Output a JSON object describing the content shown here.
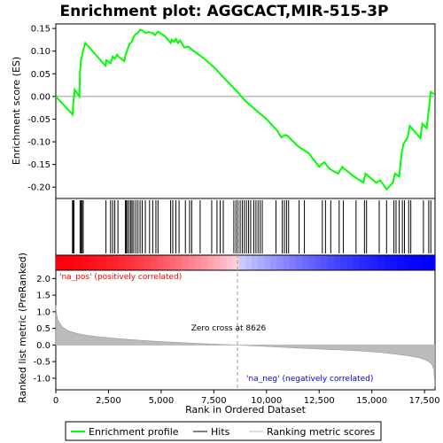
{
  "chart_data": {
    "type": "line",
    "title": "Enrichment plot: AGGCACT,MIR-515-3P",
    "xlabel": "Rank in Ordered Dataset",
    "ylabel_top": "Enrichment score (ES)",
    "ylabel_bottom": "Ranked list metric (PreRanked)",
    "xlim": [
      0,
      18000
    ],
    "x_ticks": [
      0,
      2500,
      5000,
      7500,
      10000,
      12500,
      15000,
      17500
    ],
    "x_tick_labels": [
      "0",
      "2,500",
      "5,000",
      "7,500",
      "10,000",
      "12,500",
      "15,000",
      "17,500"
    ],
    "es_ylim": [
      -0.225,
      0.16
    ],
    "es_ticks": [
      0.15,
      0.1,
      0.05,
      0.0,
      -0.05,
      -0.1,
      -0.15,
      -0.2
    ],
    "es_tick_labels": [
      "0.15",
      "0.10",
      "0.05",
      "0.00",
      "-0.05",
      "-0.10",
      "-0.15",
      "-0.20"
    ],
    "metric_ylim": [
      -1.35,
      2.25
    ],
    "metric_ticks": [
      2.0,
      1.5,
      1.0,
      0.5,
      0.0,
      -0.5,
      -1.0
    ],
    "metric_tick_labels": [
      "2.0",
      "1.5",
      "1.0",
      "0.5",
      "0.0",
      "-0.5",
      "-1.0"
    ],
    "zero_cross_rank": 8626,
    "zero_cross_label": "Zero cross at 8626",
    "pos_label": "'na_pos' (positively correlated)",
    "neg_label": "'na_neg' (negatively correlated)",
    "colors": {
      "es_line": "#00ff00",
      "pos_text": "#ff0000",
      "neg_text": "#0000ff",
      "metric_fill": "#bbbbbb",
      "zero_line": "#999999"
    },
    "legend": [
      {
        "label": "Enrichment profile",
        "kind": "line",
        "color": "#00ff00"
      },
      {
        "label": "Hits",
        "kind": "line",
        "color": "#000000"
      },
      {
        "label": "Ranking metric scores",
        "kind": "line",
        "color": "#bbbbbb"
      }
    ],
    "es_profile": {
      "x": [
        0,
        800,
        830,
        900,
        1120,
        1150,
        1200,
        1270,
        1300,
        1400,
        2350,
        2400,
        2600,
        2700,
        2800,
        2900,
        3000,
        3250,
        3300,
        3400,
        3500,
        3600,
        3700,
        3800,
        3900,
        4000,
        4100,
        4250,
        4400,
        4500,
        4600,
        4700,
        4850,
        5200,
        5450,
        5500,
        5600,
        5700,
        5800,
        5900,
        6100,
        6300,
        6400,
        7000,
        7500,
        8000,
        8626,
        9000,
        9500,
        10000,
        10500,
        10700,
        10900,
        11000,
        11500,
        12000,
        12500,
        12650,
        12750,
        13000,
        13400,
        13600,
        13700,
        14200,
        14600,
        14700,
        15200,
        15400,
        15700,
        16000,
        16100,
        16300,
        16400,
        16500,
        16700,
        16800,
        17300,
        17400,
        17600,
        17700,
        17800,
        17950
      ],
      "y": [
        0.0,
        -0.04,
        -0.015,
        0.015,
        0.0,
        0.055,
        0.08,
        0.095,
        0.102,
        0.118,
        0.068,
        0.08,
        0.073,
        0.088,
        0.083,
        0.092,
        0.087,
        0.078,
        0.09,
        0.103,
        0.116,
        0.12,
        0.132,
        0.138,
        0.14,
        0.147,
        0.146,
        0.14,
        0.142,
        0.141,
        0.14,
        0.135,
        0.143,
        0.132,
        0.118,
        0.125,
        0.121,
        0.127,
        0.118,
        0.124,
        0.108,
        0.11,
        0.105,
        0.085,
        0.065,
        0.04,
        0.01,
        -0.01,
        -0.03,
        -0.05,
        -0.075,
        -0.09,
        -0.085,
        -0.087,
        -0.11,
        -0.125,
        -0.155,
        -0.148,
        -0.145,
        -0.16,
        -0.17,
        -0.155,
        -0.16,
        -0.178,
        -0.19,
        -0.17,
        -0.19,
        -0.185,
        -0.205,
        -0.19,
        -0.17,
        -0.177,
        -0.13,
        -0.105,
        -0.09,
        -0.065,
        -0.092,
        -0.06,
        -0.07,
        -0.03,
        0.01,
        0.005
      ]
    },
    "hit_ranks": [
      790,
      830,
      860,
      1150,
      1200,
      1250,
      1300,
      2380,
      2600,
      2700,
      2800,
      2950,
      3300,
      3350,
      3400,
      3480,
      3560,
      3620,
      3700,
      3800,
      3900,
      4000,
      4100,
      4250,
      4450,
      4600,
      4750,
      4850,
      5450,
      5550,
      5700,
      5850,
      6150,
      6350,
      6450,
      6850,
      7400,
      7650,
      7800,
      7950,
      8450,
      8550,
      8650,
      8750,
      8850,
      8950,
      9050,
      9150,
      9250,
      9400,
      9500,
      9600,
      9700,
      9800,
      10450,
      10750,
      10850,
      10950,
      11050,
      11550,
      11800,
      12650,
      12800,
      13050,
      13450,
      13650,
      14250,
      14650,
      14750,
      15350,
      15700,
      16050,
      16150,
      16300,
      16450,
      16550,
      16750,
      16850,
      17450,
      17700,
      17800
    ],
    "metric_profile": {
      "x": [
        0,
        30,
        100,
        300,
        600,
        1000,
        1500,
        2000,
        3000,
        4000,
        5000,
        6000,
        7000,
        8000,
        8626,
        9500,
        10500,
        11500,
        12500,
        13500,
        14500,
        15500,
        16200,
        16800,
        17200,
        17500,
        17700,
        17850,
        17950,
        17990
      ],
      "y": [
        1.2,
        0.95,
        0.75,
        0.55,
        0.42,
        0.35,
        0.29,
        0.25,
        0.19,
        0.14,
        0.1,
        0.07,
        0.04,
        0.015,
        0.0,
        -0.03,
        -0.06,
        -0.09,
        -0.12,
        -0.15,
        -0.18,
        -0.23,
        -0.28,
        -0.33,
        -0.38,
        -0.44,
        -0.5,
        -0.58,
        -0.75,
        -1.25
      ]
    }
  }
}
